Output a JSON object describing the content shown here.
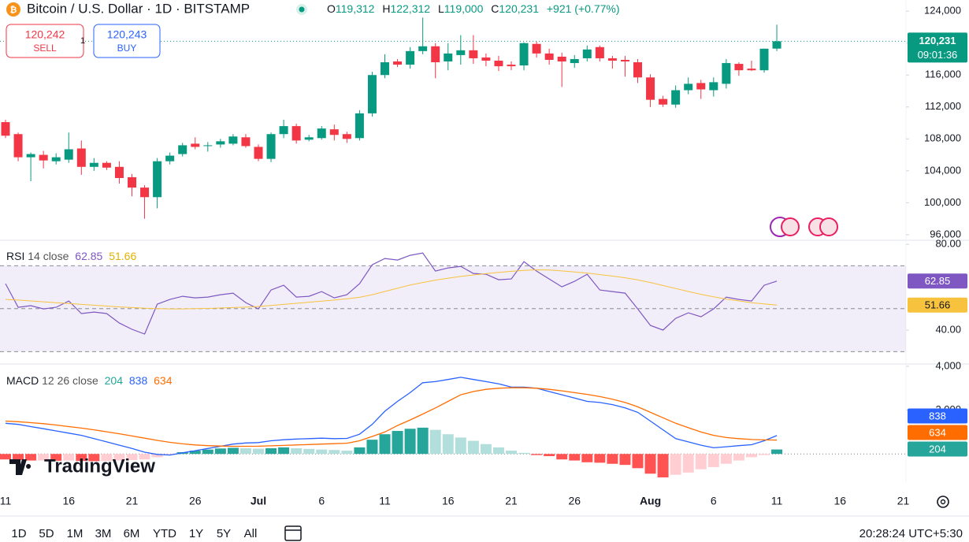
{
  "header": {
    "symbol": "Bitcoin / U.S. Dollar · 1D · BITSTAMP",
    "ohlc": [
      {
        "key": "O",
        "value": "119,312"
      },
      {
        "key": "H",
        "value": "122,312"
      },
      {
        "key": "L",
        "value": "119,000"
      },
      {
        "key": "C",
        "value": "120,231"
      }
    ],
    "change": "+921 (+0.77%)"
  },
  "trade": {
    "sell_price": "120,242",
    "sell": "SELL",
    "spread": "1",
    "buy_price": "120,243",
    "buy": "BUY"
  },
  "price_tag": {
    "countdown": "09:01:36"
  },
  "chart_data": [
    {
      "type": "candlestick",
      "categories": [
        "11",
        null,
        null,
        null,
        null,
        "16",
        null,
        null,
        null,
        null,
        "21",
        null,
        null,
        null,
        null,
        "26",
        null,
        null,
        null,
        null,
        "Jul",
        null,
        null,
        null,
        null,
        "6",
        null,
        null,
        null,
        null,
        "11",
        null,
        null,
        null,
        null,
        "16",
        null,
        null,
        null,
        null,
        "21",
        null,
        null,
        null,
        null,
        "26",
        null,
        null,
        null,
        null,
        null,
        "Aug",
        null,
        null,
        null,
        null,
        "6",
        null,
        null,
        null,
        null,
        "11",
        null,
        null,
        null,
        null,
        "16",
        null,
        null,
        null,
        null,
        "21"
      ],
      "open": [
        110100,
        108600,
        105700,
        106000,
        105200,
        105400,
        106800,
        104500,
        105000,
        104500,
        103200,
        101900,
        100700,
        105200,
        106100,
        107400,
        107100,
        107300,
        107400,
        108200,
        107000,
        105500,
        108600,
        109600,
        107900,
        108100,
        109200,
        108600,
        108100,
        111200,
        116000,
        117700,
        117300,
        119000,
        119600,
        117700,
        118500,
        119100,
        118200,
        117800,
        117300,
        117200,
        119900,
        118700,
        118300,
        117500,
        118100,
        119500,
        118100,
        117900,
        117600,
        115700,
        113000,
        112300,
        114100,
        115000,
        114100,
        114900,
        117400,
        116800,
        116600,
        119312,
        null,
        null,
        null,
        null,
        null,
        null,
        null,
        null,
        null,
        null
      ],
      "high": [
        110400,
        108800,
        106300,
        106500,
        106200,
        108800,
        107800,
        105600,
        105200,
        105200,
        103600,
        102200,
        105600,
        106300,
        107500,
        108200,
        107600,
        108000,
        108600,
        108600,
        107300,
        108800,
        110400,
        109900,
        108500,
        109600,
        109800,
        108900,
        111600,
        116400,
        118600,
        118000,
        119500,
        123200,
        120000,
        120000,
        121000,
        121000,
        118700,
        118400,
        117700,
        120100,
        120200,
        119300,
        118800,
        118500,
        119700,
        119700,
        118400,
        118400,
        118000,
        116100,
        113400,
        114700,
        115700,
        115400,
        115700,
        118000,
        117600,
        117800,
        119300,
        122312,
        null,
        null,
        null,
        null,
        null,
        null,
        null,
        null,
        null,
        null
      ],
      "low": [
        108100,
        105200,
        102700,
        104300,
        104800,
        105000,
        103500,
        104000,
        104100,
        102400,
        100800,
        98000,
        99300,
        104800,
        105800,
        106700,
        106400,
        106900,
        107200,
        106900,
        105200,
        105100,
        108100,
        107400,
        107700,
        107900,
        107800,
        107500,
        107800,
        110800,
        115600,
        117000,
        116800,
        118600,
        115600,
        116600,
        117300,
        117400,
        117100,
        116500,
        116600,
        116600,
        118200,
        117300,
        114500,
        116900,
        117700,
        117700,
        116800,
        115800,
        115000,
        112000,
        112000,
        111900,
        113600,
        113000,
        113300,
        114300,
        115900,
        116500,
        116300,
        119000,
        null,
        null,
        null,
        null,
        null,
        null,
        null,
        null,
        null,
        null
      ],
      "close": [
        108400,
        105700,
        106100,
        105300,
        105700,
        106700,
        104500,
        105000,
        104400,
        103100,
        101900,
        100700,
        105200,
        105900,
        107200,
        107000,
        107200,
        107700,
        108300,
        107100,
        105500,
        108600,
        109600,
        107800,
        108200,
        109300,
        108500,
        108000,
        111200,
        116000,
        117600,
        117300,
        119000,
        119600,
        117600,
        118700,
        119100,
        118100,
        117800,
        117100,
        117100,
        120000,
        118700,
        117900,
        117700,
        118000,
        119200,
        118100,
        117800,
        117700,
        115700,
        112900,
        112300,
        114100,
        114900,
        114200,
        115100,
        117500,
        116600,
        116600,
        119300,
        120231,
        null,
        null,
        null,
        null,
        null,
        null,
        null,
        null,
        null,
        null
      ],
      "up_color": "#089981",
      "down_color": "#f23645",
      "ylim": [
        95300,
        125400
      ],
      "yticks": [
        {
          "value": 96000,
          "label": "96,000"
        },
        {
          "value": 100000,
          "label": "100,000"
        },
        {
          "value": 104000,
          "label": "104,000"
        },
        {
          "value": 108000,
          "label": "108,000"
        },
        {
          "value": 112000,
          "label": "112,000"
        },
        {
          "value": 116000,
          "label": "116,000"
        },
        {
          "value": 120000,
          "label": "120,000"
        },
        {
          "value": 124000,
          "label": "124,000"
        }
      ]
    },
    {
      "type": "line",
      "title": "RSI",
      "subtitle": "14 close",
      "series": [
        {
          "color": "#7e57c2",
          "values": [
            61.65,
            50.64,
            51.38,
            49.91,
            50.64,
            53.58,
            47.71,
            48.44,
            47.71,
            43.3,
            40.37,
            38.17,
            52.11,
            54.31,
            55.78,
            55.05,
            55.41,
            56.51,
            57.25,
            52.84,
            49.91,
            58.72,
            60.92,
            55.41,
            55.78,
            57.98,
            55.05,
            56.51,
            61.65,
            70.46,
            73.39,
            72.66,
            74.86,
            75.96,
            67.52,
            68.99,
            69.72,
            66.42,
            66.06,
            63.49,
            63.85,
            71.93,
            67.52,
            63.85,
            60.18,
            62.75,
            66.06,
            58.72,
            57.98,
            57.25,
            49.91,
            42.2,
            40.0,
            45.5,
            48.07,
            46.24,
            49.91,
            55.41,
            54.31,
            53.58,
            60.92,
            62.85,
            null,
            null,
            null,
            null,
            null,
            null,
            null,
            null,
            null,
            null
          ]
        },
        {
          "color": "#f7c23e",
          "values": [
            54.3,
            54.0,
            53.6,
            53.2,
            52.8,
            52.4,
            52.0,
            51.6,
            51.2,
            50.8,
            50.5,
            50.2,
            50.0,
            49.9,
            49.9,
            50.0,
            50.1,
            50.3,
            50.5,
            50.7,
            51.0,
            51.5,
            52.0,
            52.5,
            53.0,
            53.5,
            54.0,
            54.6,
            55.3,
            56.5,
            58.0,
            59.5,
            61.0,
            62.2,
            63.3,
            64.2,
            65.0,
            65.7,
            66.3,
            66.9,
            67.4,
            67.8,
            68.1,
            68.0,
            67.6,
            67.1,
            66.6,
            65.9,
            65.2,
            64.4,
            63.4,
            62.2,
            60.8,
            59.4,
            58.0,
            56.7,
            55.5,
            54.5,
            53.6,
            52.8,
            52.2,
            51.66,
            null,
            null,
            null,
            null,
            null,
            null,
            null,
            null,
            null,
            null
          ]
        }
      ],
      "bands": [
        70,
        50,
        30
      ],
      "band_color": "#7e57c2",
      "ylim": [
        24.6,
        81.5
      ],
      "yticks": [
        {
          "value": 40,
          "label": "40.00"
        },
        {
          "value": 80,
          "label": "80.00"
        }
      ]
    },
    {
      "type": "combo",
      "title": "MACD",
      "subtitle": "12 26 close",
      "series": [
        {
          "kind": "bar",
          "color": "#26a69a",
          "colors": [
            "#26a69a",
            "#b2dfdb",
            "#ffcdd2",
            "#ff5252"
          ],
          "values": [
            -250,
            -280,
            -300,
            -300,
            -310,
            -300,
            -320,
            -330,
            -320,
            -300,
            -280,
            -250,
            -150,
            -40,
            80,
            150,
            200,
            250,
            280,
            260,
            240,
            260,
            300,
            260,
            230,
            200,
            180,
            150,
            300,
            650,
            900,
            1050,
            1150,
            1200,
            1100,
            900,
            750,
            600,
            450,
            300,
            150,
            50,
            -50,
            -100,
            -250,
            -300,
            -380,
            -400,
            -450,
            -500,
            -650,
            -900,
            -1070,
            -950,
            -850,
            -700,
            -600,
            -450,
            -300,
            -150,
            -50,
            204,
            null,
            null,
            null,
            null,
            null,
            null,
            null,
            null,
            null,
            null
          ]
        },
        {
          "kind": "line",
          "color": "#2962ff",
          "values": [
            1400,
            1350,
            1250,
            1150,
            1050,
            950,
            850,
            700,
            550,
            400,
            250,
            80,
            -20,
            -50,
            50,
            150,
            250,
            350,
            450,
            500,
            520,
            600,
            650,
            680,
            700,
            720,
            700,
            710,
            900,
            1350,
            1950,
            2400,
            2800,
            3250,
            3300,
            3400,
            3500,
            3400,
            3300,
            3200,
            3050,
            3050,
            3000,
            2850,
            2700,
            2550,
            2400,
            2350,
            2250,
            2100,
            1900,
            1500,
            1100,
            700,
            550,
            400,
            280,
            330,
            380,
            420,
            600,
            838,
            null,
            null,
            null,
            null,
            null,
            null,
            null,
            null,
            null,
            null
          ]
        },
        {
          "kind": "line",
          "color": "#ff6d00",
          "values": [
            1500,
            1470,
            1430,
            1380,
            1320,
            1250,
            1180,
            1100,
            1010,
            920,
            820,
            720,
            620,
            530,
            460,
            410,
            380,
            360,
            350,
            350,
            355,
            370,
            390,
            410,
            430,
            450,
            470,
            490,
            600,
            800,
            1000,
            1300,
            1550,
            1820,
            2100,
            2400,
            2700,
            2850,
            2950,
            3000,
            3020,
            3020,
            3000,
            2950,
            2880,
            2800,
            2720,
            2620,
            2500,
            2350,
            2150,
            1900,
            1650,
            1400,
            1200,
            1000,
            850,
            750,
            700,
            660,
            640,
            634,
            null,
            null,
            null,
            null,
            null,
            null,
            null,
            null,
            null,
            null
          ]
        }
      ],
      "ylim": [
        -1286,
        4071
      ],
      "yticks": [
        {
          "value": 2000,
          "label": "2,000"
        },
        {
          "value": 4000,
          "label": "4,000"
        }
      ]
    }
  ],
  "logo": "TradingView",
  "toolbar": {
    "ranges": [
      "1D",
      "5D",
      "1M",
      "3M",
      "6M",
      "YTD",
      "1Y",
      "5Y",
      "All"
    ],
    "clock": "20:28:24 UTC+5:30"
  }
}
